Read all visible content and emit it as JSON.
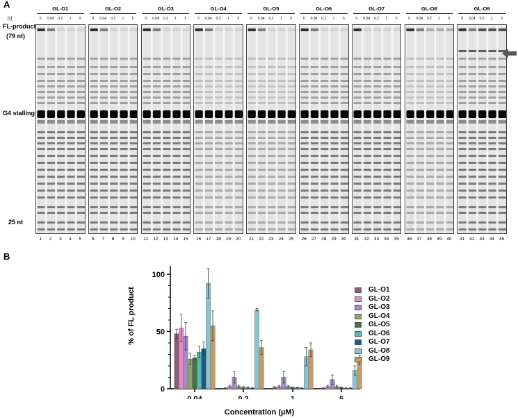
{
  "panel_a": {
    "letter": "A",
    "conc_key": "[c]",
    "side_labels": {
      "fl_product": "FL-product",
      "fl_nt": "(79 nt)",
      "g4": "G4 stalling",
      "nt25": "25 nt"
    },
    "groups": [
      {
        "name": "GL-O1",
        "conc": [
          "0",
          "0.04",
          "0.2",
          "1",
          "5"
        ],
        "lanes": [
          "1",
          "2",
          "3",
          "4",
          "5"
        ]
      },
      {
        "name": "GL-O2",
        "conc": [
          "0",
          "0.04",
          "0.2",
          "1",
          "5"
        ],
        "lanes": [
          "6",
          "7",
          "8",
          "9",
          "10"
        ]
      },
      {
        "name": "GL-O3",
        "conc": [
          "0",
          "0.04",
          "0.2",
          "1",
          "5"
        ],
        "lanes": [
          "11",
          "12",
          "13",
          "14",
          "15"
        ]
      },
      {
        "name": "GL-O4",
        "conc": [
          "0",
          "0.04",
          "0.2",
          "1",
          "5"
        ],
        "lanes": [
          "16",
          "17",
          "18",
          "19",
          "20"
        ]
      },
      {
        "name": "GL-O5",
        "conc": [
          "0",
          "0.04",
          "0.2",
          "1",
          "5"
        ],
        "lanes": [
          "21",
          "22",
          "23",
          "24",
          "25"
        ]
      },
      {
        "name": "GL-O6",
        "conc": [
          "0",
          "0.04",
          "0.2",
          "1",
          "5"
        ],
        "lanes": [
          "26",
          "27",
          "28",
          "29",
          "30"
        ]
      },
      {
        "name": "GL-O7",
        "conc": [
          "0",
          "0.04",
          "0.2",
          "1",
          "5"
        ],
        "lanes": [
          "31",
          "32",
          "33",
          "34",
          "35"
        ]
      },
      {
        "name": "GL-O8",
        "conc": [
          "0",
          "0.04",
          "0.2",
          "1",
          "5"
        ],
        "lanes": [
          "36",
          "37",
          "38",
          "39",
          "40"
        ]
      },
      {
        "name": "GL-O9",
        "conc": [
          "0",
          "0.04",
          "0.2",
          "1",
          "5"
        ],
        "lanes": [
          "41",
          "42",
          "43",
          "44",
          "45"
        ]
      }
    ],
    "arrow_icon": "arrow-left-icon"
  },
  "panel_b": {
    "letter": "B",
    "chart_data": {
      "type": "bar",
      "ylabel": "% of FL product",
      "xlabel": "Concentration (µM)",
      "ylim": [
        0,
        100
      ],
      "yticks": [
        "0",
        "50",
        "100"
      ],
      "categories": [
        "0.04",
        "0.2",
        "1",
        "5"
      ],
      "series": [
        {
          "name": "GL-O1",
          "color": "#8c5e77",
          "values": [
            48,
            0.5,
            1,
            0.5
          ],
          "errors": [
            4,
            0.5,
            1,
            0.5
          ]
        },
        {
          "name": "GL-O2",
          "color": "#e08ec8",
          "values": [
            53,
            2,
            2,
            2
          ],
          "errors": [
            12,
            1,
            1,
            1
          ]
        },
        {
          "name": "GL-O3",
          "color": "#a887c8",
          "values": [
            46,
            10,
            10,
            8
          ],
          "errors": [
            12,
            5,
            5,
            4
          ]
        },
        {
          "name": "GL-O4",
          "color": "#8aa66a",
          "values": [
            26,
            2,
            2,
            2
          ],
          "errors": [
            5,
            1,
            1,
            1
          ]
        },
        {
          "name": "GL-O5",
          "color": "#4c7045",
          "values": [
            27,
            1,
            1,
            1
          ],
          "errors": [
            2,
            1,
            0.5,
            0.5
          ]
        },
        {
          "name": "GL-O6",
          "color": "#5bb8b0",
          "values": [
            32,
            1,
            1,
            0.5
          ],
          "errors": [
            5,
            0.5,
            0.5,
            0.5
          ]
        },
        {
          "name": "GL-O7",
          "color": "#1a5a84",
          "values": [
            35,
            0.5,
            0.5,
            0.5
          ],
          "errors": [
            6,
            0.5,
            0.5,
            0.5
          ]
        },
        {
          "name": "GL-O8",
          "color": "#8ac4cc",
          "values": [
            92,
            69,
            28,
            16
          ],
          "errors": [
            13,
            1,
            8,
            4
          ]
        },
        {
          "name": "GL-O9",
          "color": "#c49a68",
          "values": [
            55,
            36,
            34,
            25
          ],
          "errors": [
            13,
            6,
            6,
            4
          ]
        }
      ]
    }
  }
}
